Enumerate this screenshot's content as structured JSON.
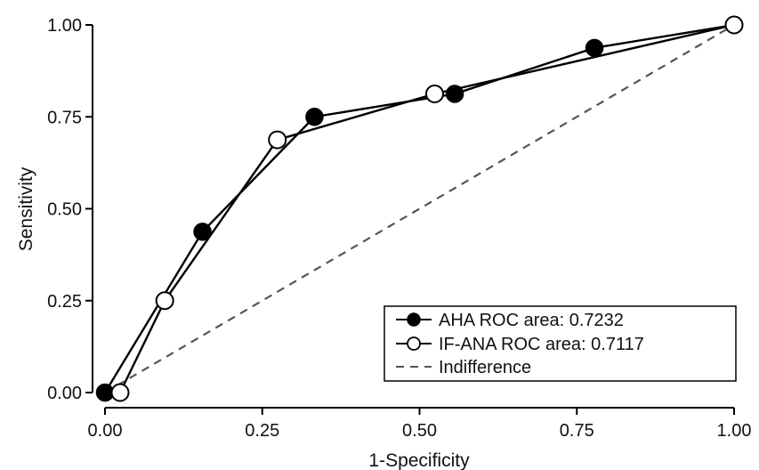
{
  "chart_data": {
    "type": "line",
    "title": "",
    "xlabel": "1-Specificity",
    "ylabel": "Sensitivity",
    "xlim": [
      0,
      1
    ],
    "ylim": [
      0,
      1
    ],
    "xticks": [
      "0.00",
      "0.25",
      "0.50",
      "0.75",
      "1.00"
    ],
    "yticks": [
      "0.00",
      "0.25",
      "0.50",
      "0.75",
      "1.00"
    ],
    "grid": false,
    "legend_position": "bottom-right",
    "series": [
      {
        "name": "AHA ROC area: 0.7232",
        "marker": "filled-circle",
        "color": "#000000",
        "x": [
          0.0,
          0.155,
          0.333,
          0.556,
          0.778,
          1.0
        ],
        "y": [
          0.0,
          0.4375,
          0.75,
          0.8125,
          0.9375,
          1.0
        ]
      },
      {
        "name": "IF-ANA ROC area: 0.7117",
        "marker": "open-circle",
        "color": "#000000",
        "x": [
          0.024,
          0.095,
          0.274,
          0.524,
          1.0
        ],
        "y": [
          0.0,
          0.25,
          0.6875,
          0.8125,
          1.0
        ]
      },
      {
        "name": "Indifference",
        "style": "dashed",
        "color": "#555555",
        "x": [
          0,
          1
        ],
        "y": [
          0,
          1
        ]
      }
    ]
  }
}
